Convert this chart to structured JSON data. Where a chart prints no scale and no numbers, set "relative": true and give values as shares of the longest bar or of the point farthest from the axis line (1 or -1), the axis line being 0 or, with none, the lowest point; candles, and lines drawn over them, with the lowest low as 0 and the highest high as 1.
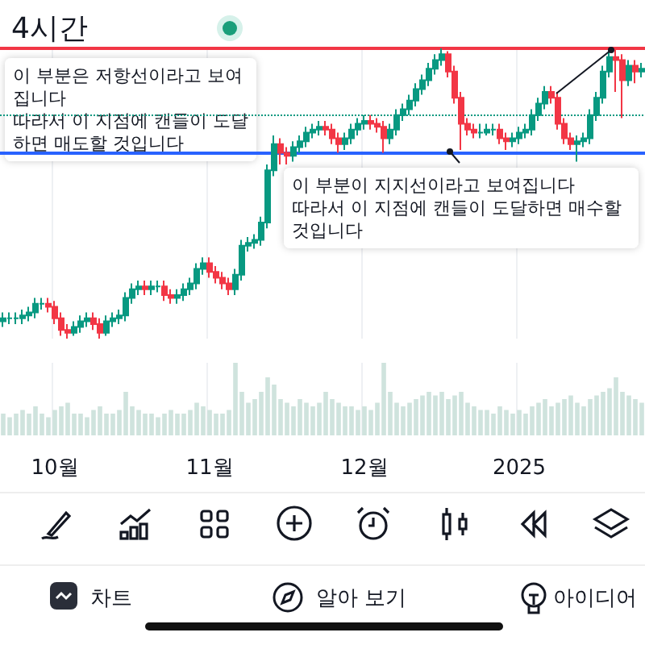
{
  "chart_data": [
    {
      "type": "candlestick",
      "title": "4시간",
      "relative": true,
      "grid": "x",
      "tick_labels": false,
      "colors": [
        "#089981",
        "#089981",
        "#089981",
        "#089981",
        "#089981",
        "#089981",
        "#089981",
        "#f23645",
        "#f23645",
        "#f23645",
        "#f23645",
        "#089981",
        "#089981",
        "#089981",
        "#f23645",
        "#f23645",
        "#089981",
        "#089981",
        "#089981",
        "#089981",
        "#089981",
        "#089981",
        "#f23645",
        "#089981",
        "#089981",
        "#f23645",
        "#f23645",
        "#089981",
        "#089981",
        "#089981",
        "#089981",
        "#089981",
        "#f23645",
        "#f23645",
        "#f23645",
        "#f23645",
        "#089981",
        "#089981",
        "#089981",
        "#089981",
        "#089981",
        "#089981",
        "#089981",
        "#f23645",
        "#f23645",
        "#089981",
        "#089981",
        "#089981",
        "#089981",
        "#089981",
        "#f23645",
        "#f23645",
        "#f23645",
        "#089981",
        "#089981",
        "#089981",
        "#089981",
        "#f23645",
        "#f23645",
        "#f23645",
        "#089981",
        "#089981",
        "#089981",
        "#089981",
        "#089981",
        "#089981",
        "#089981",
        "#089981",
        "#089981",
        "#f23645",
        "#f23645",
        "#f23645",
        "#f23645",
        "#f23645",
        "#089981",
        "#089981",
        "#089981",
        "#f23645",
        "#f23645",
        "#089981",
        "#089981",
        "#089981",
        "#089981",
        "#089981",
        "#089981",
        "#f23645",
        "#f23645",
        "#f23645",
        "#f23645",
        "#089981",
        "#089981",
        "#089981",
        "#089981",
        "#089981",
        "#089981",
        "#f23645",
        "#f23645",
        "#089981",
        "#f23645",
        "#089981"
      ],
      "categories": [
        null,
        null,
        null,
        null,
        null,
        null,
        null,
        null,
        null,
        null,
        null,
        null,
        null,
        null,
        null,
        null,
        null,
        null,
        null,
        null,
        null,
        null,
        null,
        null,
        null,
        null,
        null,
        null,
        null,
        null,
        null,
        null,
        null,
        null,
        null,
        null,
        null,
        null,
        null,
        null,
        null,
        null,
        null,
        null,
        null,
        null,
        null,
        null,
        null,
        null,
        null,
        null,
        null,
        null,
        null,
        null,
        null,
        null,
        null,
        null,
        null,
        null,
        null,
        null,
        null,
        null,
        null,
        null,
        null,
        null,
        null,
        null,
        null,
        null,
        null,
        null,
        null,
        null,
        null,
        null,
        null,
        null,
        null,
        null,
        null,
        null,
        null,
        null,
        null,
        null,
        null,
        null,
        null,
        null,
        null,
        null,
        null,
        null,
        null,
        null
      ],
      "ohlc": [
        [
          0.06,
          0.09,
          0.04,
          0.07
        ],
        [
          0.07,
          0.09,
          0.05,
          0.07
        ],
        [
          0.07,
          0.09,
          0.05,
          0.07
        ],
        [
          0.07,
          0.1,
          0.05,
          0.08
        ],
        [
          0.08,
          0.11,
          0.06,
          0.09
        ],
        [
          0.09,
          0.14,
          0.07,
          0.12
        ],
        [
          0.12,
          0.14,
          0.1,
          0.12
        ],
        [
          0.12,
          0.14,
          0.09,
          0.11
        ],
        [
          0.11,
          0.13,
          0.05,
          0.07
        ],
        [
          0.07,
          0.09,
          0.01,
          0.03
        ],
        [
          0.03,
          0.05,
          0,
          0.02
        ],
        [
          0.02,
          0.06,
          0.01,
          0.04
        ],
        [
          0.04,
          0.08,
          0.02,
          0.06
        ],
        [
          0.06,
          0.09,
          0.04,
          0.07
        ],
        [
          0.07,
          0.09,
          0.03,
          0.05
        ],
        [
          0.05,
          0.07,
          0,
          0.02
        ],
        [
          0.02,
          0.08,
          0.01,
          0.06
        ],
        [
          0.06,
          0.09,
          0.04,
          0.07
        ],
        [
          0.07,
          0.1,
          0.05,
          0.08
        ],
        [
          0.08,
          0.16,
          0.06,
          0.14
        ],
        [
          0.14,
          0.19,
          0.12,
          0.17
        ],
        [
          0.17,
          0.2,
          0.15,
          0.18
        ],
        [
          0.18,
          0.2,
          0.15,
          0.17
        ],
        [
          0.17,
          0.2,
          0.15,
          0.18
        ],
        [
          0.18,
          0.2,
          0.16,
          0.18
        ],
        [
          0.18,
          0.2,
          0.13,
          0.15
        ],
        [
          0.15,
          0.17,
          0.12,
          0.14
        ],
        [
          0.14,
          0.17,
          0.12,
          0.15
        ],
        [
          0.15,
          0.19,
          0.13,
          0.17
        ],
        [
          0.17,
          0.21,
          0.15,
          0.19
        ],
        [
          0.19,
          0.26,
          0.17,
          0.24
        ],
        [
          0.24,
          0.28,
          0.22,
          0.26
        ],
        [
          0.26,
          0.28,
          0.21,
          0.23
        ],
        [
          0.23,
          0.25,
          0.19,
          0.21
        ],
        [
          0.21,
          0.23,
          0.17,
          0.19
        ],
        [
          0.19,
          0.21,
          0.15,
          0.17
        ],
        [
          0.17,
          0.24,
          0.15,
          0.22
        ],
        [
          0.22,
          0.34,
          0.2,
          0.32
        ],
        [
          0.32,
          0.35,
          0.3,
          0.33
        ],
        [
          0.33,
          0.36,
          0.31,
          0.34
        ],
        [
          0.34,
          0.42,
          0.32,
          0.4
        ],
        [
          0.4,
          0.6,
          0.38,
          0.58
        ],
        [
          0.58,
          0.7,
          0.56,
          0.67
        ],
        [
          0.67,
          0.69,
          0.6,
          0.64
        ],
        [
          0.64,
          0.66,
          0.6,
          0.63
        ],
        [
          0.63,
          0.68,
          0.61,
          0.66
        ],
        [
          0.66,
          0.7,
          0.64,
          0.68
        ],
        [
          0.68,
          0.73,
          0.66,
          0.71
        ],
        [
          0.71,
          0.74,
          0.69,
          0.72
        ],
        [
          0.72,
          0.75,
          0.7,
          0.73
        ],
        [
          0.73,
          0.75,
          0.7,
          0.72
        ],
        [
          0.72,
          0.74,
          0.67,
          0.69
        ],
        [
          0.69,
          0.71,
          0.64,
          0.67
        ],
        [
          0.67,
          0.71,
          0.65,
          0.69
        ],
        [
          0.69,
          0.74,
          0.67,
          0.72
        ],
        [
          0.72,
          0.76,
          0.7,
          0.74
        ],
        [
          0.74,
          0.77,
          0.72,
          0.75
        ],
        [
          0.75,
          0.77,
          0.72,
          0.74
        ],
        [
          0.74,
          0.76,
          0.71,
          0.73
        ],
        [
          0.73,
          0.75,
          0.64,
          0.69
        ],
        [
          0.69,
          0.74,
          0.67,
          0.72
        ],
        [
          0.72,
          0.79,
          0.7,
          0.77
        ],
        [
          0.77,
          0.81,
          0.75,
          0.79
        ],
        [
          0.79,
          0.84,
          0.77,
          0.82
        ],
        [
          0.82,
          0.88,
          0.8,
          0.86
        ],
        [
          0.86,
          0.91,
          0.84,
          0.89
        ],
        [
          0.89,
          0.95,
          0.87,
          0.93
        ],
        [
          0.93,
          0.98,
          0.91,
          0.96
        ],
        [
          0.96,
          1.0,
          0.94,
          0.98
        ],
        [
          0.98,
          0.99,
          0.9,
          0.92
        ],
        [
          0.92,
          0.94,
          0.81,
          0.83
        ],
        [
          0.83,
          0.85,
          0.65,
          0.74
        ],
        [
          0.74,
          0.76,
          0.7,
          0.72
        ],
        [
          0.72,
          0.74,
          0.69,
          0.71
        ],
        [
          0.71,
          0.74,
          0.69,
          0.71
        ],
        [
          0.71,
          0.74,
          0.7,
          0.72
        ],
        [
          0.72,
          0.74,
          0.7,
          0.72
        ],
        [
          0.72,
          0.74,
          0.67,
          0.69
        ],
        [
          0.69,
          0.71,
          0.65,
          0.68
        ],
        [
          0.68,
          0.71,
          0.66,
          0.69
        ],
        [
          0.69,
          0.73,
          0.67,
          0.71
        ],
        [
          0.71,
          0.74,
          0.69,
          0.72
        ],
        [
          0.72,
          0.79,
          0.7,
          0.77
        ],
        [
          0.77,
          0.83,
          0.75,
          0.81
        ],
        [
          0.81,
          0.87,
          0.79,
          0.85
        ],
        [
          0.85,
          0.87,
          0.81,
          0.83
        ],
        [
          0.83,
          0.85,
          0.72,
          0.74
        ],
        [
          0.74,
          0.76,
          0.67,
          0.69
        ],
        [
          0.69,
          0.71,
          0.65,
          0.67
        ],
        [
          0.67,
          0.7,
          0.61,
          0.68
        ],
        [
          0.68,
          0.71,
          0.66,
          0.69
        ],
        [
          0.69,
          0.79,
          0.67,
          0.77
        ],
        [
          0.77,
          0.85,
          0.75,
          0.83
        ],
        [
          0.83,
          0.94,
          0.81,
          0.92
        ],
        [
          0.92,
          0.99,
          0.9,
          0.97
        ],
        [
          0.97,
          1.0,
          0.85,
          0.96
        ],
        [
          0.96,
          0.98,
          0.76,
          0.89
        ],
        [
          0.89,
          0.96,
          0.87,
          0.94
        ],
        [
          0.94,
          0.96,
          0.88,
          0.92
        ],
        [
          0.92,
          0.95,
          0.9,
          0.93
        ]
      ],
      "ref_lines": [
        {
          "axis": "y",
          "value": 1.0,
          "color": "#f23645"
        },
        {
          "axis": "y",
          "value": 0.64,
          "color": "#2962ff"
        },
        {
          "axis": "y",
          "value": 0.77,
          "color": "#089981",
          "line_style": "dotted"
        }
      ],
      "annotations": [
        "이 부분은 저항선이라고 보여집니다\n따라서 이 지점에 캔들이 도달하면 매도할 것입니다",
        "이 부분이 지지선이라고 보여집니다\n따라서 이 지점에 캔들이 도달하면 매수할 것입니다",
        "차트",
        "알아 보기",
        "아이디어"
      ]
    },
    {
      "type": "bar",
      "relative": true,
      "grid": "x",
      "color": "#cfe3dd",
      "categories": [
        null,
        null,
        null,
        null,
        null,
        null,
        null,
        null,
        "10월",
        null,
        null,
        null,
        null,
        null,
        null,
        null,
        null,
        null,
        null,
        null,
        null,
        null,
        null,
        null,
        null,
        null,
        null,
        null,
        null,
        null,
        null,
        null,
        "11월",
        null,
        null,
        null,
        null,
        null,
        null,
        null,
        null,
        null,
        null,
        null,
        null,
        null,
        null,
        null,
        null,
        null,
        null,
        null,
        null,
        null,
        null,
        null,
        "12월",
        null,
        null,
        null,
        null,
        null,
        null,
        null,
        null,
        null,
        null,
        null,
        null,
        null,
        null,
        null,
        null,
        null,
        null,
        null,
        null,
        null,
        null,
        null,
        "2025",
        null,
        null,
        null,
        null,
        null,
        null,
        null,
        null,
        null,
        null,
        null,
        null,
        null,
        null,
        null,
        null,
        null,
        null,
        null
      ],
      "values": [
        0.3,
        0.25,
        0.3,
        0.35,
        0.3,
        0.4,
        0.3,
        0.25,
        0.35,
        0.4,
        0.45,
        0.3,
        0.3,
        0.25,
        0.35,
        0.4,
        0.3,
        0.3,
        0.35,
        0.6,
        0.4,
        0.35,
        0.3,
        0.3,
        0.25,
        0.3,
        0.35,
        0.3,
        0.3,
        0.35,
        0.45,
        0.4,
        0.35,
        0.3,
        0.3,
        0.35,
        1.0,
        0.6,
        0.45,
        0.5,
        0.6,
        0.8,
        0.7,
        0.5,
        0.45,
        0.4,
        0.5,
        0.45,
        0.4,
        0.45,
        0.6,
        0.5,
        0.45,
        0.4,
        0.4,
        0.35,
        0.4,
        0.35,
        0.45,
        1.0,
        0.6,
        0.45,
        0.4,
        0.45,
        0.5,
        0.55,
        0.6,
        0.55,
        0.6,
        0.5,
        0.55,
        0.6,
        0.45,
        0.4,
        0.35,
        0.35,
        0.3,
        0.4,
        0.35,
        0.3,
        0.35,
        0.3,
        0.4,
        0.45,
        0.5,
        0.4,
        0.45,
        0.5,
        0.55,
        0.45,
        0.4,
        0.5,
        0.55,
        0.6,
        0.65,
        0.8,
        0.6,
        0.55,
        0.5,
        0.45
      ]
    }
  ]
}
